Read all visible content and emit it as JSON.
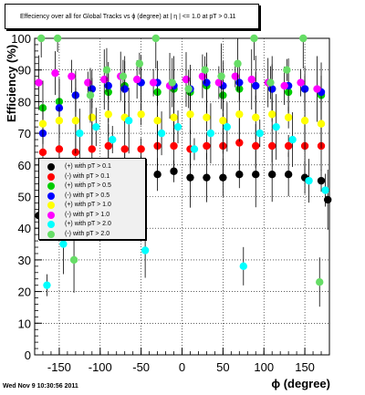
{
  "title": "Effeciency over all for Global Tracks vs ϕ (degree) at |  η | <= 1.0 at pT > 0.11",
  "timestamp": "Wed Nov  9 10:30:56 2011",
  "colors": {
    "black": "#000000",
    "red": "#ff0000",
    "green": "#00cc00",
    "blue": "#0000ff",
    "yellow": "#ffff00",
    "magenta": "#ff00ff",
    "cyan": "#00ffff",
    "lightgreen": "#66dd66"
  },
  "chart_data": {
    "type": "scatter",
    "xlabel": "ϕ (degree)",
    "ylabel": "Efficiency (%)",
    "xlim": [
      -180,
      180
    ],
    "ylim": [
      0,
      100
    ],
    "x_ticks": [
      -150,
      -100,
      -50,
      0,
      50,
      100,
      150
    ],
    "y_ticks": [
      0,
      10,
      20,
      30,
      40,
      50,
      60,
      70,
      80,
      90,
      100
    ],
    "grid": true,
    "legend_position": "middle-left",
    "series": [
      {
        "name": "(+) with pT > 0.1",
        "color_key": "black",
        "x": [
          -175,
          -165,
          -150,
          -130,
          -110,
          -90,
          -70,
          -50,
          -30,
          -10,
          10,
          30,
          50,
          70,
          90,
          110,
          130,
          150,
          170,
          178
        ],
        "y": [
          44,
          52,
          55,
          55,
          55,
          56,
          56,
          56,
          57,
          58,
          56,
          56,
          56,
          57,
          57,
          57,
          57,
          56,
          55,
          49
        ]
      },
      {
        "name": "(-) with pT > 0.1",
        "color_key": "red",
        "x": [
          -170,
          -150,
          -130,
          -110,
          -90,
          -70,
          -50,
          -30,
          -10,
          10,
          30,
          50,
          70,
          90,
          110,
          130,
          150,
          170
        ],
        "y": [
          64,
          65,
          64,
          65,
          66,
          65,
          65,
          66,
          66,
          65,
          66,
          66,
          67,
          66,
          66,
          66,
          66,
          66
        ]
      },
      {
        "name": "(+) with pT > 0.5",
        "color_key": "green",
        "x": [
          -170,
          -150,
          -130,
          -110,
          -90,
          -70,
          -50,
          -30,
          -10,
          10,
          30,
          50,
          70,
          90,
          110,
          130,
          150,
          170
        ],
        "y": [
          78,
          80,
          82,
          84,
          83,
          85,
          86,
          83,
          84,
          83,
          85,
          82,
          84,
          85,
          84,
          83,
          84,
          82
        ]
      },
      {
        "name": "(-) with pT > 0.5",
        "color_key": "blue",
        "x": [
          -170,
          -150,
          -130,
          -110,
          -90,
          -70,
          -50,
          -30,
          -10,
          10,
          30,
          50,
          70,
          90,
          110,
          130,
          150,
          170
        ],
        "y": [
          70,
          78,
          82,
          84,
          85,
          84,
          86,
          86,
          85,
          84,
          86,
          85,
          86,
          85,
          84,
          85,
          84,
          83
        ]
      },
      {
        "name": "(+) with pT > 1.0",
        "color_key": "yellow",
        "x": [
          -170,
          -150,
          -130,
          -110,
          -90,
          -70,
          -50,
          -30,
          -10,
          10,
          30,
          50,
          70,
          90,
          110,
          130,
          150,
          170
        ],
        "y": [
          73,
          74,
          74,
          75,
          76,
          75,
          76,
          74,
          75,
          76,
          75,
          74,
          76,
          75,
          76,
          75,
          74,
          73
        ]
      },
      {
        "name": "(-) with pT > 1.0",
        "color_key": "magenta",
        "x": [
          -175,
          -155,
          -135,
          -115,
          -95,
          -75,
          -55,
          -35,
          -15,
          5,
          25,
          45,
          65,
          85,
          105,
          125,
          145,
          165
        ],
        "y": [
          86,
          89,
          88,
          86,
          87,
          88,
          87,
          86,
          85,
          87,
          88,
          86,
          88,
          87,
          86,
          85,
          86,
          84
        ]
      },
      {
        "name": "(+) with pT > 2.0",
        "color_key": "cyan",
        "x": [
          -165,
          -145,
          -125,
          -105,
          -85,
          -65,
          -45,
          -25,
          -5,
          15,
          35,
          55,
          75,
          95,
          115,
          135,
          155,
          175
        ],
        "y": [
          22,
          35,
          70,
          72,
          68,
          74,
          33,
          70,
          72,
          65,
          70,
          72,
          28,
          70,
          72,
          68,
          55,
          52
        ]
      },
      {
        "name": "(-) with pT > 2.0",
        "color_key": "lightgreen",
        "x": [
          -172,
          -152,
          -132,
          -112,
          -92,
          -72,
          -52,
          -32,
          -12,
          8,
          28,
          48,
          68,
          88,
          108,
          128,
          148,
          168
        ],
        "y": [
          100,
          100,
          30,
          82,
          90,
          88,
          92,
          100,
          86,
          84,
          90,
          88,
          92,
          100,
          86,
          90,
          100,
          23
        ]
      }
    ]
  }
}
